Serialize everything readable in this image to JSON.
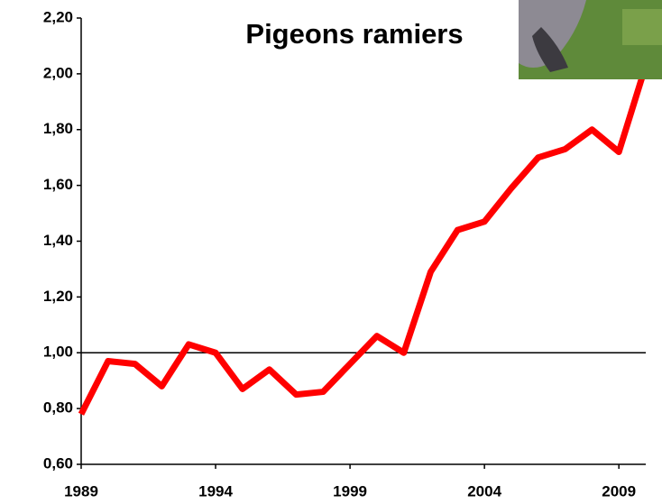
{
  "chart_data": {
    "type": "line",
    "title": "Pigeons ramiers",
    "x": [
      1989,
      1990,
      1991,
      1992,
      1993,
      1994,
      1995,
      1996,
      1997,
      1998,
      1999,
      2000,
      2001,
      2002,
      2003,
      2004,
      2005,
      2006,
      2007,
      2008,
      2009,
      2010
    ],
    "values": [
      0.78,
      0.97,
      0.96,
      0.88,
      1.03,
      1.0,
      0.87,
      0.94,
      0.85,
      0.86,
      0.96,
      1.06,
      1.0,
      1.29,
      1.44,
      1.47,
      1.59,
      1.7,
      1.73,
      1.8,
      1.72,
      2.03
    ],
    "color": "#ff0000",
    "reference_line": 1,
    "xlim": [
      1989,
      2010
    ],
    "xticks": [
      1989,
      1994,
      1999,
      2004,
      2009
    ],
    "ylim": [
      0.6,
      2.2
    ],
    "yticks": [
      {
        "value": 0.6,
        "label": "0,60"
      },
      {
        "value": 0.8,
        "label": "0,80"
      },
      {
        "value": 1.0,
        "label": "1,00"
      },
      {
        "value": 1.2,
        "label": "1,20"
      },
      {
        "value": 1.4,
        "label": "1,40"
      },
      {
        "value": 1.6,
        "label": "1,60"
      },
      {
        "value": 1.8,
        "label": "1,80"
      },
      {
        "value": 2.0,
        "label": "2,00"
      },
      {
        "value": 2.2,
        "label": "2,20"
      }
    ]
  }
}
